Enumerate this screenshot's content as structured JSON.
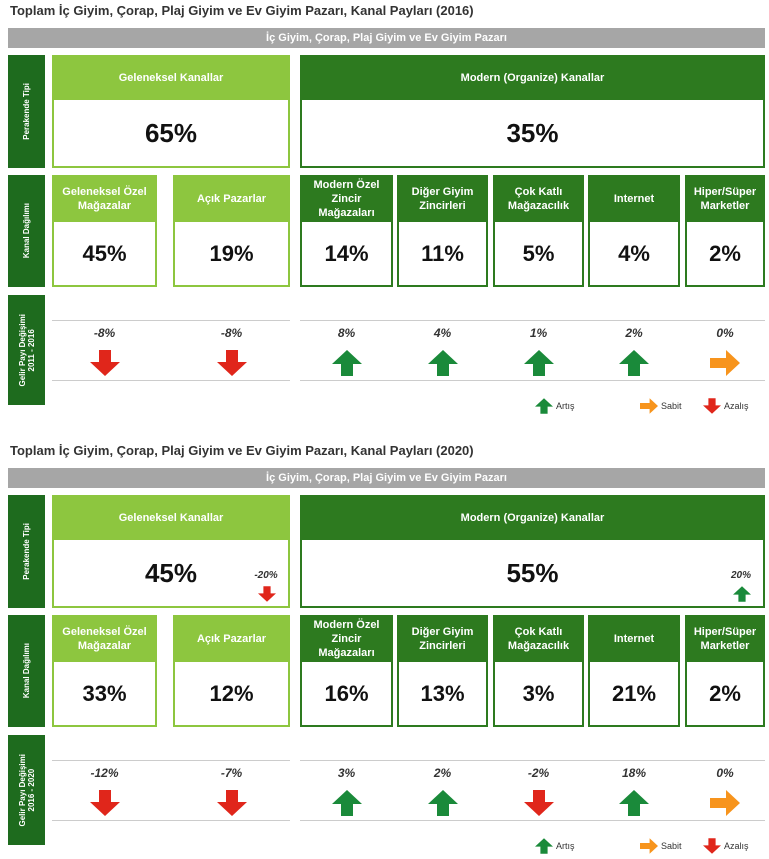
{
  "panels": [
    {
      "title": "Toplam İç Giyim, Çorap, Plaj Giyim ve Ev Giyim Pazarı, Kanal Payları (2016)",
      "banner": "İç Giyim, Çorap, Plaj Giyim ve Ev Giyim Pazarı",
      "row_labels": {
        "retail_type": "Perakende Tipi",
        "channel_split": "Kanal Dağılımı",
        "revenue_change": "Gelir Payı Değişimi",
        "period": "2011 - 2016"
      },
      "groups": [
        {
          "label": "Geleneksel Kanallar",
          "share": "65%"
        },
        {
          "label": "Modern (Organize) Kanallar",
          "share": "35%"
        }
      ],
      "channels": [
        {
          "label": "Geleneksel Özel Mağazalar",
          "share": "45%",
          "change": "-8%",
          "trend": "down"
        },
        {
          "label": "Açık Pazarlar",
          "share": "19%",
          "change": "-8%",
          "trend": "down"
        },
        {
          "label": "Modern Özel Zincir Mağazaları",
          "share": "14%",
          "change": "8%",
          "trend": "up"
        },
        {
          "label": "Diğer Giyim Zincirleri",
          "share": "11%",
          "change": "4%",
          "trend": "up"
        },
        {
          "label": "Çok Katlı Mağazacılık",
          "share": "5%",
          "change": "1%",
          "trend": "up"
        },
        {
          "label": "Internet",
          "share": "4%",
          "change": "2%",
          "trend": "up"
        },
        {
          "label": "Hiper/Süper Marketler",
          "share": "2%",
          "change": "0%",
          "trend": "flat"
        }
      ],
      "legend": [
        {
          "label": "Artış",
          "trend": "up"
        },
        {
          "label": "Sabit",
          "trend": "flat"
        },
        {
          "label": "Azalış",
          "trend": "down"
        }
      ]
    },
    {
      "title": "Toplam İç Giyim, Çorap, Plaj Giyim ve Ev Giyim Pazarı, Kanal Payları (2020)",
      "banner": "İç Giyim, Çorap, Plaj Giyim ve Ev Giyim Pazarı",
      "row_labels": {
        "retail_type": "Perakende Tipi",
        "channel_split": "Kanal Dağılımı",
        "revenue_change": "Gelir Payı Değişimi",
        "period": "2016 - 2020"
      },
      "groups": [
        {
          "label": "Geleneksel Kanallar",
          "share": "45%",
          "change": "-20%",
          "trend": "down"
        },
        {
          "label": "Modern (Organize) Kanallar",
          "share": "55%",
          "change": "20%",
          "trend": "up"
        }
      ],
      "channels": [
        {
          "label": "Geleneksel Özel Mağazalar",
          "share": "33%",
          "change": "-12%",
          "trend": "down"
        },
        {
          "label": "Açık Pazarlar",
          "share": "12%",
          "change": "-7%",
          "trend": "down"
        },
        {
          "label": "Modern Özel Zincir Mağazaları",
          "share": "16%",
          "change": "3%",
          "trend": "up"
        },
        {
          "label": "Diğer Giyim Zincirleri",
          "share": "13%",
          "change": "2%",
          "trend": "up"
        },
        {
          "label": "Çok Katlı Mağazacılık",
          "share": "3%",
          "change": "-2%",
          "trend": "down"
        },
        {
          "label": "Internet",
          "share": "21%",
          "change": "18%",
          "trend": "up"
        },
        {
          "label": "Hiper/Süper Marketler",
          "share": "2%",
          "change": "0%",
          "trend": "flat"
        }
      ],
      "legend": [
        {
          "label": "Artış",
          "trend": "up"
        },
        {
          "label": "Sabit",
          "trend": "flat"
        },
        {
          "label": "Azalış",
          "trend": "down"
        }
      ]
    }
  ]
}
